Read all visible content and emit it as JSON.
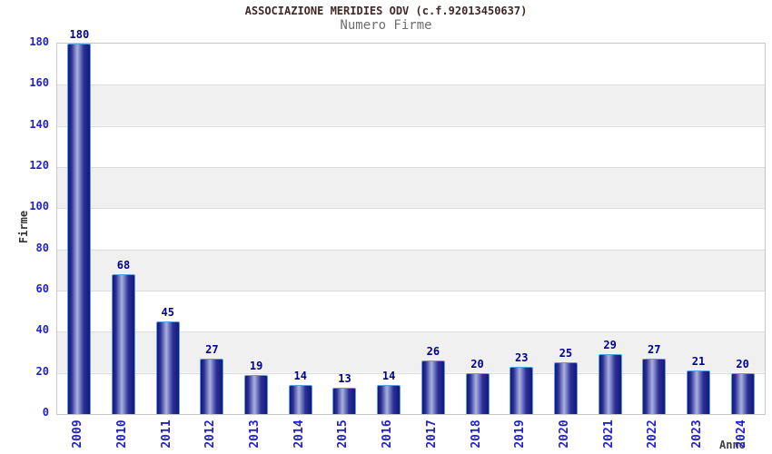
{
  "page": {
    "background": "#ffffff"
  },
  "chart_data": {
    "type": "bar",
    "title": "ASSOCIAZIONE MERIDIES ODV (c.f.92013450637)",
    "subtitle": "Numero Firme",
    "xlabel": "Anno",
    "ylabel": "Firme",
    "categories": [
      "2009",
      "2010",
      "2011",
      "2012",
      "2013",
      "2014",
      "2015",
      "2016",
      "2017",
      "2018",
      "2019",
      "2020",
      "2021",
      "2022",
      "2023",
      "2024"
    ],
    "values": [
      180,
      68,
      45,
      27,
      19,
      14,
      13,
      14,
      26,
      20,
      23,
      25,
      29,
      27,
      21,
      20
    ],
    "ylim": [
      0,
      180
    ],
    "yticks": [
      0,
      20,
      40,
      60,
      80,
      100,
      120,
      140,
      160,
      180
    ],
    "grid": "horizontal-bands",
    "legend": "none",
    "colors": {
      "bar_dark": "#16167e",
      "bar_mid": "#2a2f96",
      "bar_light": "#aab2de",
      "bar_border": "#55a0e0",
      "value_label": "#00008b",
      "tick_label": "#2222cc",
      "axis_label": "#404040",
      "title": "#402828",
      "subtitle": "#6e6e6e",
      "band": "#f0f0f0",
      "plot_border": "#c8c8c8"
    }
  }
}
